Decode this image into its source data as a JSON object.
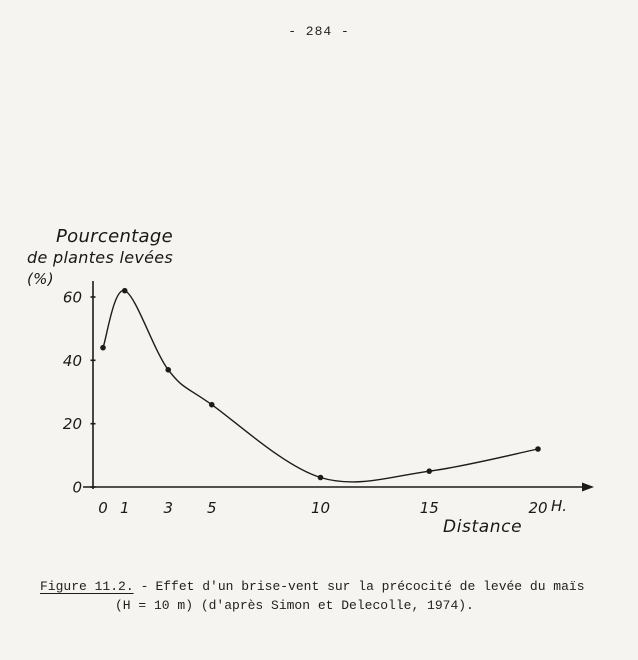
{
  "page": {
    "number": "- 284 -"
  },
  "chart_data": {
    "type": "line",
    "title": "",
    "x": [
      0,
      1,
      3,
      5,
      10,
      15,
      20
    ],
    "values": [
      44,
      62,
      37,
      26,
      3,
      5,
      12
    ],
    "series_name": "Pourcentage de plantes levées",
    "xlabel": "Distance",
    "x_unit": "H.",
    "ylabel_lines": [
      "Pourcentage",
      "de plantes levées",
      "(%)"
    ],
    "x_ticks": [
      0,
      1,
      3,
      5,
      10,
      15,
      20
    ],
    "y_ticks": [
      0,
      20,
      40,
      60
    ],
    "xlim": [
      0,
      22.5
    ],
    "ylim": [
      0,
      66
    ],
    "grid": false,
    "legend": "none",
    "line_color": "#1c1c1c",
    "marker": "filled-dot"
  },
  "caption": {
    "figure_label": "Figure 11.2.",
    "separator": "-",
    "line1_text": "Effet d'un brise-vent sur la précocité de levée du maïs",
    "line2_text": "(H = 10 m) (d'après Simon et Delecolle, 1974)."
  }
}
